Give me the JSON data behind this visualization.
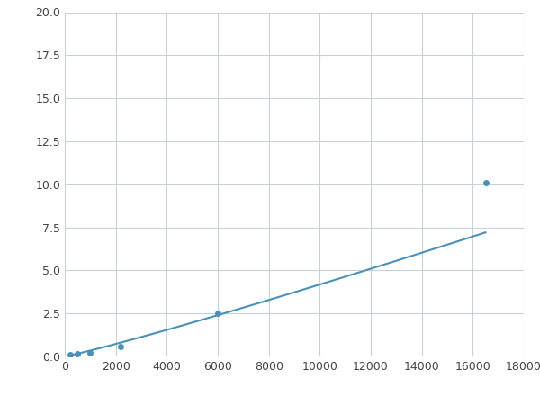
{
  "x": [
    200,
    500,
    1000,
    2200,
    6000,
    16500
  ],
  "y": [
    0.1,
    0.15,
    0.2,
    0.6,
    2.5,
    10.1
  ],
  "line_color": "#4a90b8",
  "marker_color": "#4a90b8",
  "marker_size": 5,
  "xlim": [
    0,
    18000
  ],
  "ylim": [
    0,
    20
  ],
  "xticks": [
    0,
    2000,
    4000,
    6000,
    8000,
    10000,
    12000,
    14000,
    16000,
    18000
  ],
  "yticks": [
    0.0,
    2.5,
    5.0,
    7.5,
    10.0,
    12.5,
    15.0,
    17.5,
    20.0
  ],
  "grid_color": "#c8d0d8",
  "background_color": "#ffffff",
  "figure_bg": "#ffffff"
}
